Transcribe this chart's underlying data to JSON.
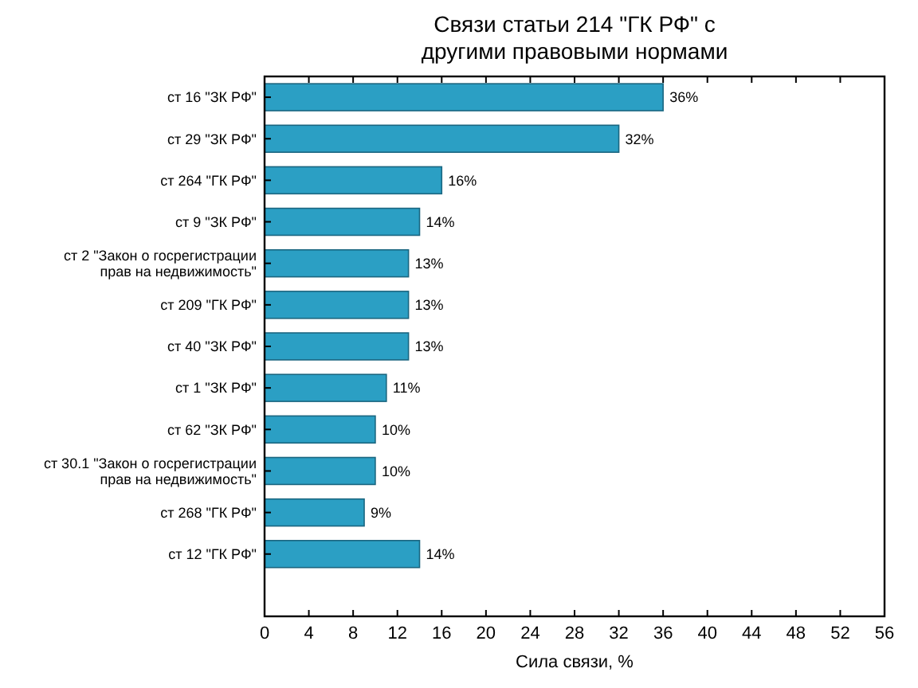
{
  "chart_data": {
    "type": "bar",
    "orientation": "horizontal",
    "title": "Связи статьи 214 \"ГК РФ\" с\nдругими правовыми нормами",
    "xlabel": "Сила связи, %",
    "categories": [
      "ст 16 \"ЗК РФ\"",
      "ст 29 \"ЗК РФ\"",
      "ст 264 \"ГК РФ\"",
      "ст 9 \"ЗК РФ\"",
      "ст 2 \"Закон о госрегистрации\nправ на недвижимость\"",
      "ст 209 \"ГК РФ\"",
      "ст 40 \"ЗК РФ\"",
      "ст 1 \"ЗК РФ\"",
      "ст 62 \"ЗК РФ\"",
      "ст 30.1 \"Закон о госрегистрации\nправ на недвижимость\"",
      "ст 268 \"ГК РФ\"",
      "ст 12 \"ГК РФ\""
    ],
    "values": [
      36,
      32,
      16,
      14,
      13,
      13,
      13,
      11,
      10,
      10,
      9,
      14
    ],
    "value_labels": [
      "36%",
      "32%",
      "16%",
      "14%",
      "13%",
      "13%",
      "13%",
      "11%",
      "10%",
      "10%",
      "9%",
      "14%"
    ],
    "color": "#2b9fc4",
    "xlim": [
      0,
      56
    ],
    "xticks": [
      0,
      4,
      8,
      12,
      16,
      20,
      24,
      28,
      32,
      36,
      40,
      44,
      48,
      52,
      56
    ],
    "grid": false
  }
}
